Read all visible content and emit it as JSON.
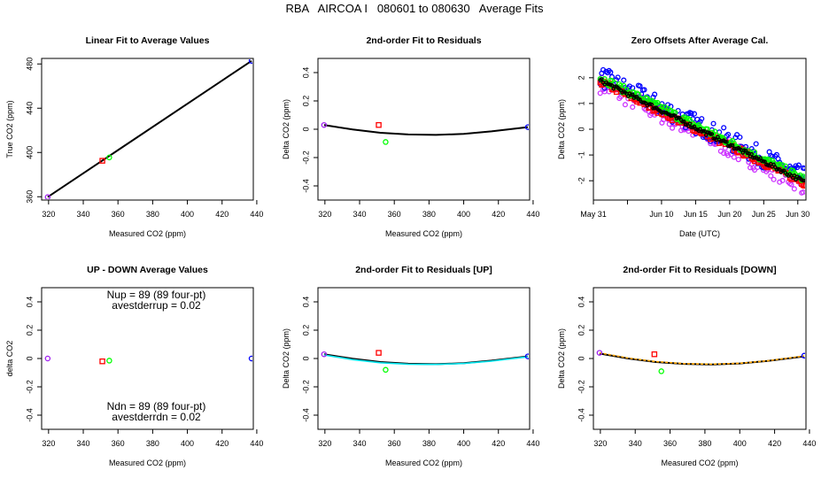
{
  "main_title": "RBA   AIRCOA I   080601 to 080630   Average Fits",
  "colors": {
    "black": "#000000",
    "purple": "#a020f0",
    "blue": "#0000ff",
    "red": "#ff0000",
    "green": "#00ff00",
    "cyan": "#00e5ee",
    "orange": "#ffa500",
    "violet": "#cc33ff"
  },
  "chart_data": [
    {
      "type": "line",
      "title": "Linear Fit to Average Values",
      "xlabel": "Measured CO2 (ppm)",
      "ylabel": "True CO2 (ppm)",
      "xlim": [
        316,
        438
      ],
      "ylim": [
        357,
        485
      ],
      "xticks": [
        320,
        340,
        360,
        380,
        400,
        420,
        440
      ],
      "yticks": [
        360,
        400,
        440,
        480
      ],
      "series": [
        {
          "kind": "line",
          "color": "#000000",
          "x": [
            319.5,
            437
          ],
          "y": [
            359.7,
            482.8
          ]
        },
        {
          "kind": "points",
          "color": "#a020f0",
          "shape": "circle",
          "x": [
            319.5
          ],
          "y": [
            359.7
          ]
        },
        {
          "kind": "points",
          "color": "#ff0000",
          "shape": "square",
          "x": [
            351
          ],
          "y": [
            392.5
          ]
        },
        {
          "kind": "points",
          "color": "#00ff00",
          "shape": "circle",
          "x": [
            355
          ],
          "y": [
            395.5
          ]
        },
        {
          "kind": "points",
          "color": "#0000ff",
          "shape": "circle",
          "x": [
            437
          ],
          "y": [
            482.8
          ]
        }
      ]
    },
    {
      "type": "line",
      "title": "2nd-order Fit to Residuals",
      "xlabel": "Measured CO2 (ppm)",
      "ylabel": "Delta CO2 (ppm)",
      "xlim": [
        316,
        438
      ],
      "ylim": [
        -0.5,
        0.5
      ],
      "xticks": [
        320,
        340,
        360,
        380,
        400,
        420,
        440
      ],
      "yticks": [
        -0.4,
        -0.2,
        0.0,
        0.2,
        0.4
      ],
      "series": [
        {
          "kind": "curve",
          "color": "#000000",
          "x": [
            319.5,
            336,
            352,
            368,
            384,
            400,
            416,
            437
          ],
          "y": [
            0.03,
            -0.002,
            -0.025,
            -0.037,
            -0.04,
            -0.033,
            -0.015,
            0.015
          ]
        },
        {
          "kind": "points",
          "color": "#a020f0",
          "shape": "circle",
          "x": [
            319.5
          ],
          "y": [
            0.03
          ]
        },
        {
          "kind": "points",
          "color": "#ff0000",
          "shape": "square",
          "x": [
            351
          ],
          "y": [
            0.03
          ]
        },
        {
          "kind": "points",
          "color": "#00ff00",
          "shape": "circle",
          "x": [
            355
          ],
          "y": [
            -0.09
          ]
        },
        {
          "kind": "points",
          "color": "#0000ff",
          "shape": "circle",
          "x": [
            437
          ],
          "y": [
            0.015
          ]
        }
      ]
    },
    {
      "type": "scatter",
      "title": "Zero Offsets After Average Cal.",
      "xlabel": "Date (UTC)",
      "ylabel": "Delta CO2 (ppm)",
      "xlim": [
        0.0,
        31.2
      ],
      "ylim": [
        -2.75,
        2.75
      ],
      "xticks": [
        {
          "v": 0,
          "label": "May 31"
        },
        {
          "v": 5,
          "label": ""
        },
        {
          "v": 10,
          "label": "Jun 10"
        },
        {
          "v": 15,
          "label": "Jun 15"
        },
        {
          "v": 20,
          "label": "Jun 20"
        },
        {
          "v": 25,
          "label": "Jun 25"
        },
        {
          "v": 30,
          "label": "Jun 30"
        }
      ],
      "yticks": [
        -2,
        -1,
        0,
        1,
        2
      ],
      "trend": {
        "start": [
          1,
          1.9
        ],
        "end": [
          31,
          -2.05
        ]
      },
      "series": [
        {
          "name": "",
          "color": "#cc33ff",
          "shape": "circle",
          "offset": -0.15,
          "spread": 0.35
        },
        {
          "name": "",
          "color": "#0000ff",
          "shape": "circle",
          "offset": 0.15,
          "spread": 0.4
        },
        {
          "name": "",
          "color": "#ff0000",
          "shape": "square",
          "offset": -0.05,
          "spread": 0.12
        },
        {
          "name": "",
          "color": "#00ff00",
          "shape": "circle",
          "offset": 0.1,
          "spread": 0.15
        },
        {
          "name": "",
          "color": "#000000",
          "shape": "circle",
          "offset": 0.0,
          "spread": 0.08
        }
      ]
    },
    {
      "type": "scatter",
      "title": "UP - DOWN Average Values",
      "xlabel": "Measured CO2 (ppm)",
      "ylabel": "delta CO2",
      "xlim": [
        316,
        438
      ],
      "ylim": [
        -0.5,
        0.5
      ],
      "xticks": [
        320,
        340,
        360,
        380,
        400,
        420,
        440
      ],
      "yticks": [
        -0.4,
        -0.2,
        0.0,
        0.2,
        0.4
      ],
      "annotations": [
        "Nup = 89 (89 four-pt)",
        "avestderrup =  0.02",
        "Ndn = 89 (89 four-pt)",
        "avestderrdn =  0.02"
      ],
      "series": [
        {
          "kind": "points",
          "color": "#a020f0",
          "shape": "circle",
          "x": [
            319.5
          ],
          "y": [
            0.0
          ]
        },
        {
          "kind": "points",
          "color": "#ff0000",
          "shape": "square",
          "x": [
            351
          ],
          "y": [
            -0.02
          ]
        },
        {
          "kind": "points",
          "color": "#00ff00",
          "shape": "circle",
          "x": [
            355
          ],
          "y": [
            -0.015
          ]
        },
        {
          "kind": "points",
          "color": "#0000ff",
          "shape": "circle",
          "x": [
            437
          ],
          "y": [
            0.0
          ]
        }
      ]
    },
    {
      "type": "line",
      "title": "2nd-order Fit to Residuals [UP]",
      "xlabel": "Measured CO2 (ppm)",
      "ylabel": "Delta CO2 (ppm)",
      "xlim": [
        316,
        438
      ],
      "ylim": [
        -0.5,
        0.5
      ],
      "xticks": [
        320,
        340,
        360,
        380,
        400,
        420,
        440
      ],
      "yticks": [
        -0.4,
        -0.2,
        0.0,
        0.2,
        0.4
      ],
      "series": [
        {
          "kind": "curve",
          "color": "#000000",
          "x": [
            319.5,
            336,
            352,
            368,
            384,
            400,
            416,
            437
          ],
          "y": [
            0.03,
            -0.002,
            -0.025,
            -0.037,
            -0.04,
            -0.033,
            -0.015,
            0.015
          ]
        },
        {
          "kind": "curve",
          "color": "#00e5ee",
          "x": [
            319.5,
            336,
            352,
            368,
            384,
            400,
            416,
            437
          ],
          "y": [
            0.025,
            -0.008,
            -0.03,
            -0.04,
            -0.042,
            -0.035,
            -0.018,
            0.012
          ]
        },
        {
          "kind": "points",
          "color": "#a020f0",
          "shape": "circle",
          "x": [
            319.5
          ],
          "y": [
            0.03
          ]
        },
        {
          "kind": "points",
          "color": "#ff0000",
          "shape": "square",
          "x": [
            351
          ],
          "y": [
            0.04
          ]
        },
        {
          "kind": "points",
          "color": "#00ff00",
          "shape": "circle",
          "x": [
            355
          ],
          "y": [
            -0.08
          ]
        },
        {
          "kind": "points",
          "color": "#0000ff",
          "shape": "circle",
          "x": [
            437
          ],
          "y": [
            0.015
          ]
        }
      ]
    },
    {
      "type": "line",
      "title": "2nd-order Fit to Residuals [DOWN]",
      "xlabel": "Measured CO2 (ppm)",
      "ylabel": "Delta CO2 (ppm)",
      "xlim": [
        316,
        438
      ],
      "ylim": [
        -0.5,
        0.5
      ],
      "xticks": [
        320,
        340,
        360,
        380,
        400,
        420,
        440
      ],
      "yticks": [
        -0.4,
        -0.2,
        0.0,
        0.2,
        0.4
      ],
      "series": [
        {
          "kind": "curve",
          "color": "#000000",
          "x": [
            319.5,
            336,
            352,
            368,
            384,
            400,
            416,
            437
          ],
          "y": [
            0.035,
            0.0,
            -0.025,
            -0.038,
            -0.042,
            -0.035,
            -0.017,
            0.015
          ]
        },
        {
          "kind": "curve",
          "color": "#ffa500",
          "dash": true,
          "x": [
            319.5,
            336,
            352,
            368,
            384,
            400,
            416,
            437
          ],
          "y": [
            0.04,
            0.003,
            -0.022,
            -0.036,
            -0.04,
            -0.034,
            -0.016,
            0.018
          ]
        },
        {
          "kind": "points",
          "color": "#a020f0",
          "shape": "circle",
          "x": [
            319.5
          ],
          "y": [
            0.04
          ]
        },
        {
          "kind": "points",
          "color": "#ff0000",
          "shape": "square",
          "x": [
            351
          ],
          "y": [
            0.03
          ]
        },
        {
          "kind": "points",
          "color": "#00ff00",
          "shape": "circle",
          "x": [
            355
          ],
          "y": [
            -0.09
          ]
        },
        {
          "kind": "points",
          "color": "#0000ff",
          "shape": "circle",
          "x": [
            437
          ],
          "y": [
            0.02
          ]
        }
      ]
    }
  ]
}
